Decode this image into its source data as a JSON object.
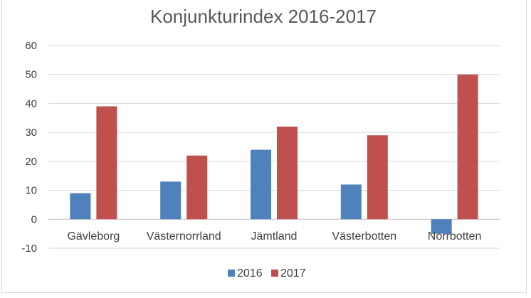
{
  "chart_data": {
    "type": "bar",
    "title": "Konjunkturindex 2016-2017",
    "xlabel": "",
    "ylabel": "",
    "categories": [
      "Gävleborg",
      "Västernorrland",
      "Jämtland",
      "Västerbotten",
      "Norrbotten"
    ],
    "series": [
      {
        "name": "2016",
        "color": "#4f81bd",
        "values": [
          9,
          13,
          24,
          12,
          -5
        ]
      },
      {
        "name": "2017",
        "color": "#c0504d",
        "values": [
          39,
          22,
          32,
          29,
          50
        ]
      }
    ],
    "ylim": [
      -10,
      60
    ],
    "yticks": [
      "-10",
      "0",
      "10",
      "20",
      "30",
      "40",
      "50",
      "60"
    ],
    "grid": true,
    "legend": "bottom-center"
  }
}
